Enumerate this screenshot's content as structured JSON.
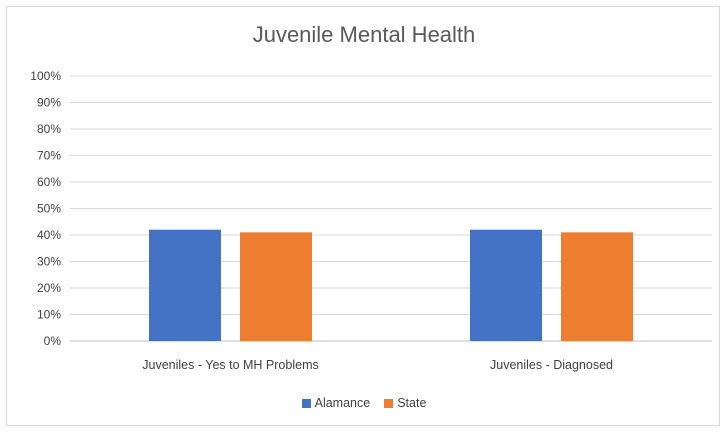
{
  "chart_data": {
    "type": "bar",
    "title": "Juvenile Mental Health",
    "categories": [
      "Juveniles - Yes to MH Problems",
      "Juveniles - Diagnosed"
    ],
    "series": [
      {
        "name": "Alamance",
        "color": "#4472c4",
        "values": [
          42,
          42
        ]
      },
      {
        "name": "State",
        "color": "#ed7d31",
        "values": [
          41,
          41
        ]
      }
    ],
    "ylim": [
      0,
      100
    ],
    "yticks": [
      "0%",
      "10%",
      "20%",
      "30%",
      "40%",
      "50%",
      "60%",
      "70%",
      "80%",
      "90%",
      "100%"
    ],
    "grid": true,
    "legend": "bottom"
  }
}
